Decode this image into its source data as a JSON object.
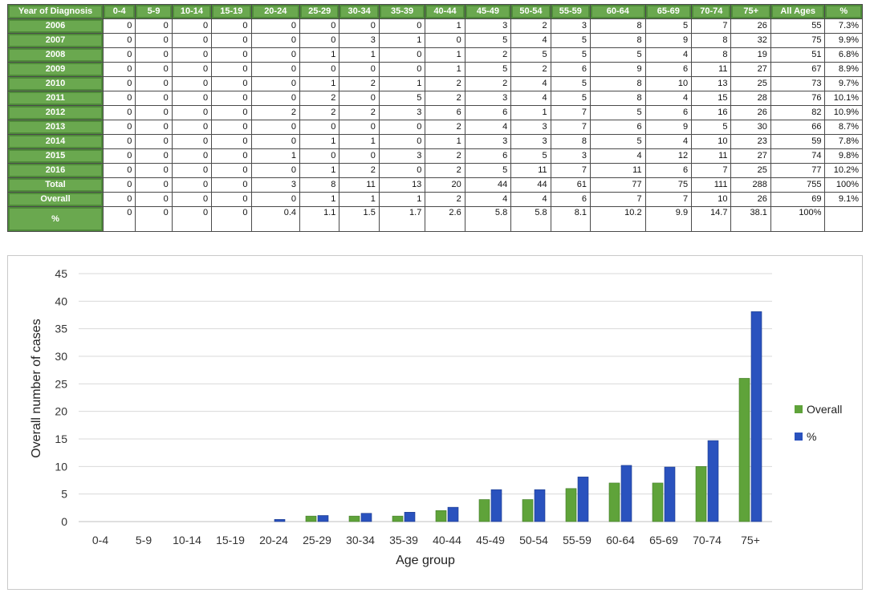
{
  "table": {
    "headers": [
      "Year of Diagnosis",
      "0-4",
      "5-9",
      "10-14",
      "15-19",
      "20-24",
      "25-29",
      "30-34",
      "35-39",
      "40-44",
      "45-49",
      "50-54",
      "55-59",
      "60-64",
      "65-69",
      "70-74",
      "75+",
      "All Ages",
      "%"
    ],
    "rows": [
      {
        "label": "2006",
        "cells": [
          "0",
          "0",
          "0",
          "0",
          "0",
          "0",
          "0",
          "0",
          "1",
          "3",
          "2",
          "3",
          "8",
          "5",
          "7",
          "26",
          "55",
          "7.3%"
        ]
      },
      {
        "label": "2007",
        "cells": [
          "0",
          "0",
          "0",
          "0",
          "0",
          "0",
          "3",
          "1",
          "0",
          "5",
          "4",
          "5",
          "8",
          "9",
          "8",
          "32",
          "75",
          "9.9%"
        ]
      },
      {
        "label": "2008",
        "cells": [
          "0",
          "0",
          "0",
          "0",
          "0",
          "1",
          "1",
          "0",
          "1",
          "2",
          "5",
          "5",
          "5",
          "4",
          "8",
          "19",
          "51",
          "6.8%"
        ]
      },
      {
        "label": "2009",
        "cells": [
          "0",
          "0",
          "0",
          "0",
          "0",
          "0",
          "0",
          "0",
          "1",
          "5",
          "2",
          "6",
          "9",
          "6",
          "11",
          "27",
          "67",
          "8.9%"
        ]
      },
      {
        "label": "2010",
        "cells": [
          "0",
          "0",
          "0",
          "0",
          "0",
          "1",
          "2",
          "1",
          "2",
          "2",
          "4",
          "5",
          "8",
          "10",
          "13",
          "25",
          "73",
          "9.7%"
        ]
      },
      {
        "label": "2011",
        "cells": [
          "0",
          "0",
          "0",
          "0",
          "0",
          "2",
          "0",
          "5",
          "2",
          "3",
          "4",
          "5",
          "8",
          "4",
          "15",
          "28",
          "76",
          "10.1%"
        ]
      },
      {
        "label": "2012",
        "cells": [
          "0",
          "0",
          "0",
          "0",
          "2",
          "2",
          "2",
          "3",
          "6",
          "6",
          "1",
          "7",
          "5",
          "6",
          "16",
          "26",
          "82",
          "10.9%"
        ]
      },
      {
        "label": "2013",
        "cells": [
          "0",
          "0",
          "0",
          "0",
          "0",
          "0",
          "0",
          "0",
          "2",
          "4",
          "3",
          "7",
          "6",
          "9",
          "5",
          "30",
          "66",
          "8.7%"
        ]
      },
      {
        "label": "2014",
        "cells": [
          "0",
          "0",
          "0",
          "0",
          "0",
          "1",
          "1",
          "0",
          "1",
          "3",
          "3",
          "8",
          "5",
          "4",
          "10",
          "23",
          "59",
          "7.8%"
        ]
      },
      {
        "label": "2015",
        "cells": [
          "0",
          "0",
          "0",
          "0",
          "1",
          "0",
          "0",
          "3",
          "2",
          "6",
          "5",
          "3",
          "4",
          "12",
          "11",
          "27",
          "74",
          "9.8%"
        ]
      },
      {
        "label": "2016",
        "cells": [
          "0",
          "0",
          "0",
          "0",
          "0",
          "1",
          "2",
          "0",
          "2",
          "5",
          "11",
          "7",
          "11",
          "6",
          "7",
          "25",
          "77",
          "10.2%"
        ]
      },
      {
        "label": "Total",
        "cells": [
          "0",
          "0",
          "0",
          "0",
          "3",
          "8",
          "11",
          "13",
          "20",
          "44",
          "44",
          "61",
          "77",
          "75",
          "111",
          "288",
          "755",
          "100%"
        ]
      },
      {
        "label": "Overall",
        "cells": [
          "0",
          "0",
          "0",
          "0",
          "0",
          "1",
          "1",
          "1",
          "2",
          "4",
          "4",
          "6",
          "7",
          "7",
          "10",
          "26",
          "69",
          "9.1%"
        ]
      }
    ],
    "pct_row": {
      "label": "%",
      "cells": [
        "0",
        "0",
        "0",
        "0",
        "0.4",
        "1.1",
        "1.5",
        "1.7",
        "2.6",
        "5.8",
        "5.8",
        "8.1",
        "10.2",
        "9.9",
        "14.7",
        "38.1",
        "100%",
        ""
      ]
    }
  },
  "chart_data": {
    "type": "bar",
    "categories": [
      "0-4",
      "5-9",
      "10-14",
      "15-19",
      "20-24",
      "25-29",
      "30-34",
      "35-39",
      "40-44",
      "45-49",
      "50-54",
      "55-59",
      "60-64",
      "65-69",
      "70-74",
      "75+"
    ],
    "series": [
      {
        "name": "Overall",
        "values": [
          0,
          0,
          0,
          0,
          0,
          1,
          1,
          1,
          2,
          4,
          4,
          6,
          7,
          7,
          10,
          26
        ],
        "color": "#5fa33a"
      },
      {
        "name": "%",
        "values": [
          0,
          0,
          0,
          0,
          0.4,
          1.1,
          1.5,
          1.7,
          2.6,
          5.8,
          5.8,
          8.1,
          10.2,
          9.9,
          14.7,
          38.1
        ],
        "color": "#2a52be"
      }
    ],
    "xlabel": "Age group",
    "ylabel": "Overall number of cases",
    "ylim": [
      0,
      45
    ],
    "yticks": [
      "0",
      "5",
      "10",
      "15",
      "20",
      "25",
      "30",
      "35",
      "40",
      "45"
    ],
    "grid": true,
    "legend_position": "right"
  }
}
